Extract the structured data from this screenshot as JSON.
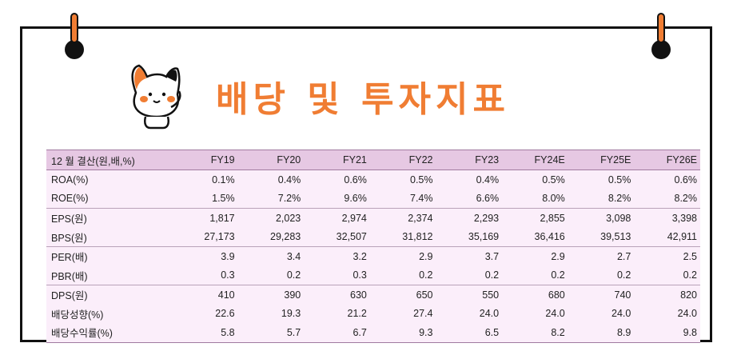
{
  "title": "배당 및 투자지표",
  "table": {
    "header_label": "12 월 결산(원,배,%)",
    "columns": [
      "FY19",
      "FY20",
      "FY21",
      "FY22",
      "FY23",
      "FY24E",
      "FY25E",
      "FY26E"
    ],
    "rows": [
      {
        "label": "ROA(%)",
        "values": [
          "0.1%",
          "0.4%",
          "0.6%",
          "0.5%",
          "0.4%",
          "0.5%",
          "0.5%",
          "0.6%"
        ]
      },
      {
        "label": "ROE(%)",
        "values": [
          "1.5%",
          "7.2%",
          "9.6%",
          "7.4%",
          "6.6%",
          "8.0%",
          "8.2%",
          "8.2%"
        ]
      },
      {
        "label": "EPS(원)",
        "values": [
          "1,817",
          "2,023",
          "2,974",
          "2,374",
          "2,293",
          "2,855",
          "3,098",
          "3,398"
        ]
      },
      {
        "label": "BPS(원)",
        "values": [
          "27,173",
          "29,283",
          "32,507",
          "31,812",
          "35,169",
          "36,416",
          "39,513",
          "42,911"
        ]
      },
      {
        "label": "PER(배)",
        "values": [
          "3.9",
          "3.4",
          "3.2",
          "2.9",
          "3.7",
          "2.9",
          "2.7",
          "2.5"
        ]
      },
      {
        "label": "PBR(배)",
        "values": [
          "0.3",
          "0.2",
          "0.3",
          "0.2",
          "0.2",
          "0.2",
          "0.2",
          "0.2"
        ]
      },
      {
        "label": "DPS(원)",
        "values": [
          "410",
          "390",
          "630",
          "650",
          "550",
          "680",
          "740",
          "820"
        ]
      },
      {
        "label": "배당성향(%)",
        "values": [
          "22.6",
          "19.3",
          "21.2",
          "27.4",
          "24.0",
          "24.0",
          "24.0",
          "24.0"
        ]
      },
      {
        "label": "배당수익률(%)",
        "values": [
          "5.8",
          "5.7",
          "6.7",
          "9.3",
          "6.5",
          "8.2",
          "8.9",
          "9.8"
        ]
      }
    ]
  },
  "colors": {
    "accent": "#f07d33",
    "header_bg": "#e6c8e3",
    "row_bg": "#fbeefa"
  },
  "icons": [
    "cat-mascot-icon"
  ]
}
